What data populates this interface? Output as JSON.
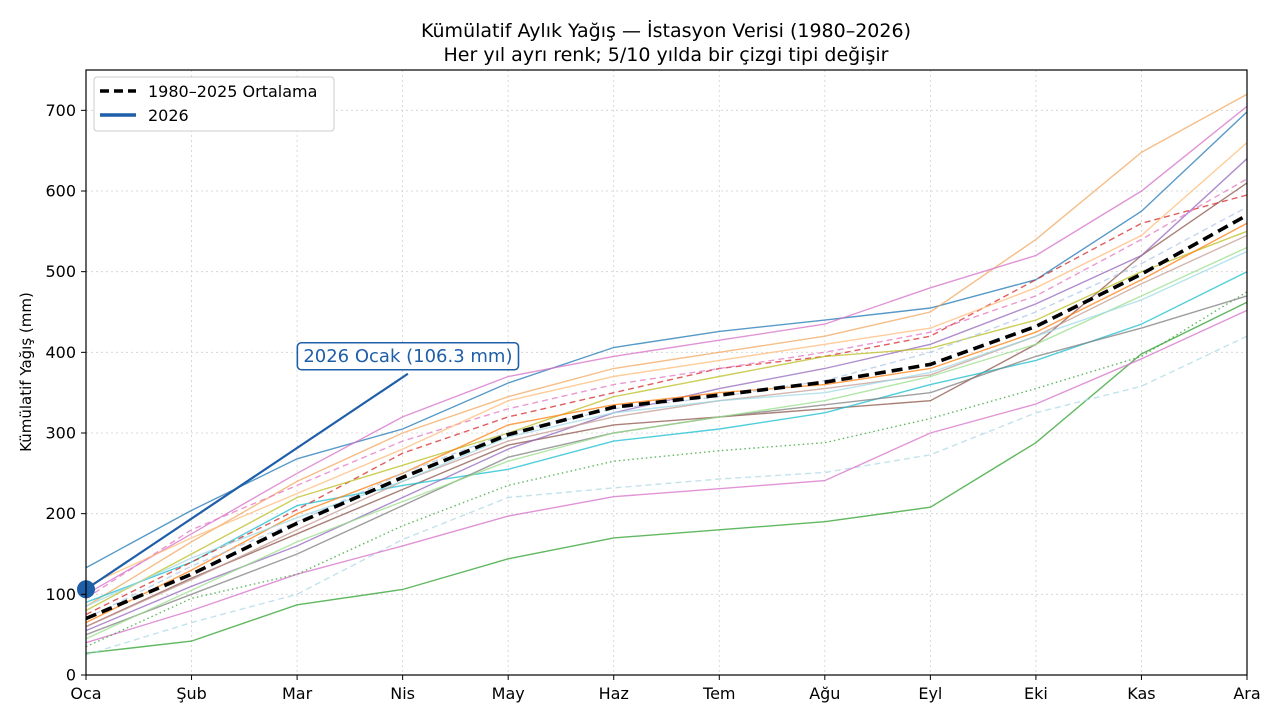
{
  "chart_data": {
    "type": "line",
    "title": "Kümülatif Aylık Yağış — İstasyon Verisi (1980–2026)",
    "subtitle": "Her yıl ayrı renk; 5/10 yılda bir çizgi tipi değişir",
    "xlabel": "",
    "ylabel": "Kümülatif Yağış (mm)",
    "categories": [
      "Oca",
      "Şub",
      "Mar",
      "Nis",
      "May",
      "Haz",
      "Tem",
      "Ağu",
      "Eyl",
      "Eki",
      "Kas",
      "Ara"
    ],
    "ylim": [
      0,
      750
    ],
    "yticks": [
      0,
      100,
      200,
      300,
      400,
      500,
      600,
      700
    ],
    "grid": true,
    "legend": {
      "placement": "top-left",
      "entries": [
        {
          "label": "1980–2025 Ortalama",
          "color": "#000000",
          "style": "dashed"
        },
        {
          "label": "2026",
          "color": "#1f5fa8",
          "style": "solid"
        }
      ]
    },
    "average": {
      "name": "1980–2025 Ortalama",
      "values": [
        70,
        125,
        188,
        245,
        298,
        332,
        347,
        363,
        385,
        432,
        497,
        570
      ]
    },
    "current": {
      "name": "2026",
      "values": [
        106.3
      ]
    },
    "annotation": {
      "text": "2026 Ocak (106.3 mm)",
      "target_category": "Oca",
      "target_value": 106.3,
      "label_category_position": 3.05,
      "label_value_position": 397
    },
    "series": [
      {
        "name": "s1",
        "color": "#2ca02c",
        "style": "solid",
        "values": [
          27,
          42,
          87,
          106,
          144,
          170,
          180,
          190,
          208,
          288,
          398,
          462
        ]
      },
      {
        "name": "s2",
        "color": "#add8e6",
        "style": "dashed",
        "values": [
          25,
          65,
          100,
          168,
          220,
          232,
          243,
          251,
          273,
          325,
          358,
          420
        ]
      },
      {
        "name": "s3",
        "color": "#d670c8",
        "style": "solid",
        "values": [
          40,
          80,
          125,
          160,
          197,
          221,
          231,
          241,
          300,
          336,
          392,
          452
        ]
      },
      {
        "name": "s4",
        "color": "#1f77b4",
        "style": "solid",
        "values": [
          133,
          204,
          268,
          305,
          362,
          406,
          426,
          440,
          455,
          490,
          575,
          698
        ]
      },
      {
        "name": "s5",
        "color": "#f2a860",
        "style": "solid",
        "values": [
          85,
          165,
          240,
          300,
          345,
          380,
          400,
          420,
          450,
          540,
          648,
          720
        ]
      },
      {
        "name": "s6",
        "color": "#d670c8",
        "style": "solid",
        "values": [
          100,
          175,
          250,
          320,
          370,
          395,
          415,
          435,
          480,
          520,
          600,
          705
        ]
      },
      {
        "name": "s7",
        "color": "#8c564b",
        "style": "solid",
        "values": [
          60,
          120,
          175,
          230,
          285,
          310,
          320,
          330,
          340,
          410,
          520,
          610
        ]
      },
      {
        "name": "s8",
        "color": "#17becf",
        "style": "solid",
        "values": [
          90,
          140,
          210,
          235,
          255,
          290,
          305,
          325,
          360,
          390,
          435,
          500
        ]
      },
      {
        "name": "s9",
        "color": "#2ca02c",
        "style": "dotted",
        "values": [
          35,
          95,
          125,
          185,
          235,
          265,
          278,
          288,
          318,
          355,
          395,
          475
        ]
      },
      {
        "name": "s10",
        "color": "#d62728",
        "style": "dashed",
        "values": [
          75,
          140,
          205,
          275,
          320,
          350,
          380,
          395,
          420,
          490,
          560,
          595
        ]
      },
      {
        "name": "s11",
        "color": "#9467bd",
        "style": "solid",
        "values": [
          55,
          110,
          160,
          220,
          280,
          325,
          355,
          380,
          410,
          460,
          520,
          640
        ]
      },
      {
        "name": "s12",
        "color": "#bcbd22",
        "style": "solid",
        "values": [
          80,
          150,
          220,
          260,
          300,
          345,
          370,
          395,
          405,
          440,
          500,
          550
        ]
      },
      {
        "name": "s13",
        "color": "#ff7f0e",
        "style": "solid",
        "values": [
          65,
          130,
          200,
          250,
          310,
          335,
          350,
          360,
          380,
          425,
          490,
          560
        ]
      },
      {
        "name": "s14",
        "color": "#7f7f7f",
        "style": "solid",
        "values": [
          50,
          100,
          150,
          210,
          270,
          300,
          320,
          335,
          350,
          395,
          430,
          470
        ]
      },
      {
        "name": "s15",
        "color": "#e377c2",
        "style": "dashed",
        "values": [
          95,
          180,
          235,
          290,
          330,
          360,
          380,
          400,
          425,
          470,
          540,
          615
        ]
      },
      {
        "name": "s16",
        "color": "#98df8a",
        "style": "solid",
        "values": [
          45,
          105,
          165,
          215,
          265,
          300,
          320,
          340,
          370,
          410,
          470,
          530
        ]
      },
      {
        "name": "s17",
        "color": "#aec7e8",
        "style": "dashed",
        "values": [
          70,
          135,
          190,
          250,
          300,
          330,
          345,
          365,
          400,
          450,
          510,
          580
        ]
      },
      {
        "name": "s18",
        "color": "#ffbb78",
        "style": "solid",
        "values": [
          110,
          170,
          225,
          280,
          340,
          370,
          390,
          410,
          430,
          480,
          545,
          660
        ]
      },
      {
        "name": "s19",
        "color": "#c49c94",
        "style": "solid",
        "values": [
          60,
          118,
          180,
          240,
          290,
          320,
          340,
          355,
          372,
          420,
          485,
          545
        ]
      },
      {
        "name": "s20",
        "color": "#9edae5",
        "style": "solid",
        "values": [
          85,
          145,
          195,
          240,
          295,
          325,
          340,
          350,
          375,
          420,
          465,
          525
        ]
      }
    ]
  }
}
